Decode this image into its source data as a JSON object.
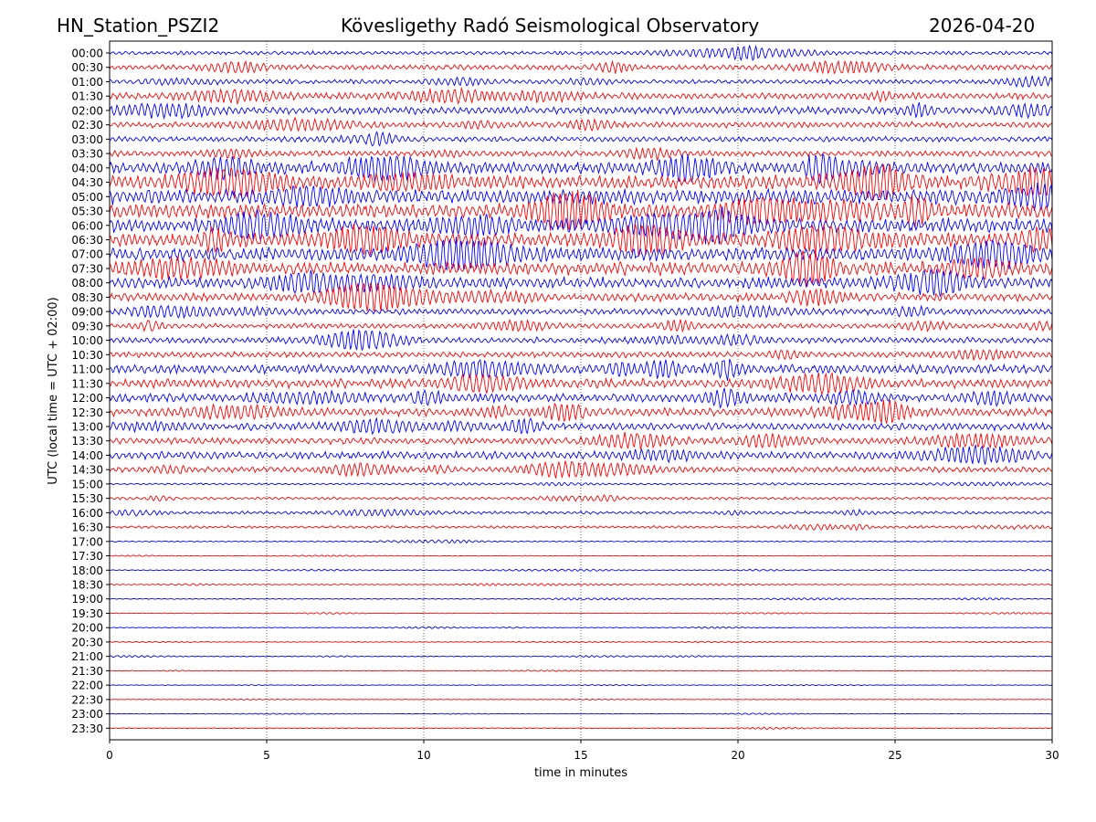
{
  "chart_data": {
    "type": "line",
    "title_left": "HN_Station_PSZI2",
    "title": "Kövesligethy Radó Seismological Observatory",
    "title_right": "2026-04-20",
    "xlabel": "time in minutes",
    "ylabel": "UTC (local time = UTC + 02:00)",
    "xlim": [
      0,
      30
    ],
    "x_ticks": [
      "0",
      "5",
      "10",
      "15",
      "20",
      "25",
      "30"
    ],
    "x_tick_values": [
      0,
      5,
      10,
      15,
      20,
      25,
      30
    ],
    "y_ticks": [
      "00:00",
      "00:30",
      "01:00",
      "01:30",
      "02:00",
      "02:30",
      "03:00",
      "03:30",
      "04:00",
      "04:30",
      "05:00",
      "05:30",
      "06:00",
      "06:30",
      "07:00",
      "07:30",
      "08:00",
      "08:30",
      "09:00",
      "09:30",
      "10:00",
      "10:30",
      "11:00",
      "11:30",
      "12:00",
      "12:30",
      "13:00",
      "13:30",
      "14:00",
      "14:30",
      "15:00",
      "15:30",
      "16:00",
      "16:30",
      "17:00",
      "17:30",
      "18:00",
      "18:30",
      "19:00",
      "19:30",
      "20:00",
      "20:30",
      "21:00",
      "21:30",
      "22:00",
      "22:30",
      "23:00",
      "23:30"
    ],
    "series_colors": [
      "#0000ff",
      "#ff0000"
    ],
    "trace_amplitude_relative": [
      0.25,
      0.35,
      0.3,
      0.45,
      0.5,
      0.4,
      0.35,
      0.4,
      0.8,
      0.9,
      1.0,
      1.0,
      0.95,
      0.95,
      0.9,
      0.85,
      0.75,
      0.55,
      0.4,
      0.35,
      0.4,
      0.4,
      0.6,
      0.6,
      0.6,
      0.55,
      0.5,
      0.45,
      0.5,
      0.4,
      0.12,
      0.18,
      0.2,
      0.18,
      0.08,
      0.05,
      0.07,
      0.07,
      0.06,
      0.05,
      0.05,
      0.06,
      0.06,
      0.04,
      0.04,
      0.04,
      0.04,
      0.05
    ],
    "grid": "vertical dotted at x ticks"
  }
}
